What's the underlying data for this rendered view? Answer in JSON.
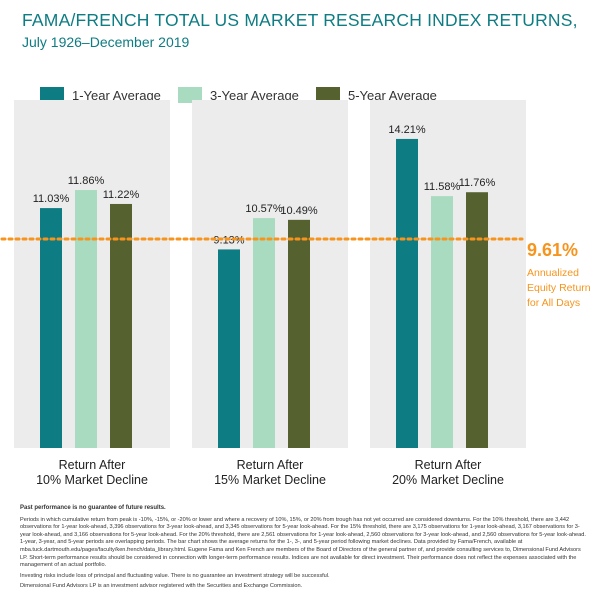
{
  "title_line1": "FAMA/FRENCH TOTAL US MARKET RESEARCH INDEX RETURNS,",
  "title_line2": "July 1926–December 2019",
  "colors": {
    "title": "#0e7c83",
    "series_1yr": "#0e7c83",
    "series_3yr": "#a8dbc0",
    "series_5yr": "#55612f",
    "reference": "#f7941d",
    "plot_bg": "#ececec"
  },
  "chart_data": {
    "type": "bar",
    "title": "FAMA/FRENCH TOTAL US MARKET RESEARCH INDEX RETURNS, July 1926–December 2019",
    "categories": [
      "Return After 10% Market Decline",
      "Return After 15% Market Decline",
      "Return After 20% Market Decline"
    ],
    "category_lines": [
      [
        "Return After",
        "10% Market Decline"
      ],
      [
        "Return After",
        "15% Market Decline"
      ],
      [
        "Return After",
        "20% Market Decline"
      ]
    ],
    "series": [
      {
        "name": "1-Year Average",
        "values": [
          11.03,
          9.13,
          14.21
        ],
        "labels": [
          "11.03%",
          "9.13%",
          "14.21%"
        ]
      },
      {
        "name": "3-Year Average",
        "values": [
          11.86,
          10.57,
          11.58
        ],
        "labels": [
          "11.86%",
          "10.57%",
          "11.58%"
        ]
      },
      {
        "name": "5-Year Average",
        "values": [
          11.22,
          10.49,
          11.76
        ],
        "labels": [
          "11.22%",
          "10.49%",
          "11.76%"
        ]
      }
    ],
    "reference_line": {
      "value": 9.61,
      "label_value": "9.61%",
      "label_text": "Annualized Equity Return for All Days"
    },
    "ylim": [
      0,
      16
    ],
    "xlabel": "",
    "ylabel": "",
    "legend": "top",
    "grid": false
  },
  "footnotes": {
    "disclaimer": "Past performance is no guarantee of future results.",
    "methodology": "Periods in which cumulative return from peak is -10%, -15%, or -20% or lower and where a recovery of 10%, 15%, or 20% from trough has not yet occurred are considered downturns. For the 10% threshold, there are 3,442 observations for 1-year look-ahead, 3,396 observations for 3-year look-ahead, and 3,345 observations for 5-year look-ahead. For the 15% threshold, there are 3,175 observations for 1-year look-ahead, 3,167 observations for 3-year look-ahead, and 3,166 observations for 5-year look-ahead. For the 20% threshold, there are 2,561 observations for 1-year look-ahead, 2,560 observations for 3-year look-ahead, and 2,560 observations for 5-year look-ahead. 1-year, 3-year, and 5-year periods are overlapping periods. The bar chart shows the average returns for the 1-, 3-, and 5-year period following market declines. Data provided by Fama/French, available at mba.tuck.dartmouth.edu/pages/faculty/ken.french/data_library.html. Eugene Fama and Ken French are members of the Board of Directors of the general partner of, and provide consulting services to, Dimensional Fund Advisors LP. Short-term performance results should be considered in connection with longer-term performance results. Indices are not available for direct investment. Their performance does not reflect the expenses associated with the management of an actual portfolio.",
    "risk": "Investing risks include loss of principal and fluctuating value. There is no guarantee an investment strategy will be successful.",
    "advisor": "Dimensional Fund Advisors LP is an investment advisor registered with the Securities and Exchange Commission."
  }
}
